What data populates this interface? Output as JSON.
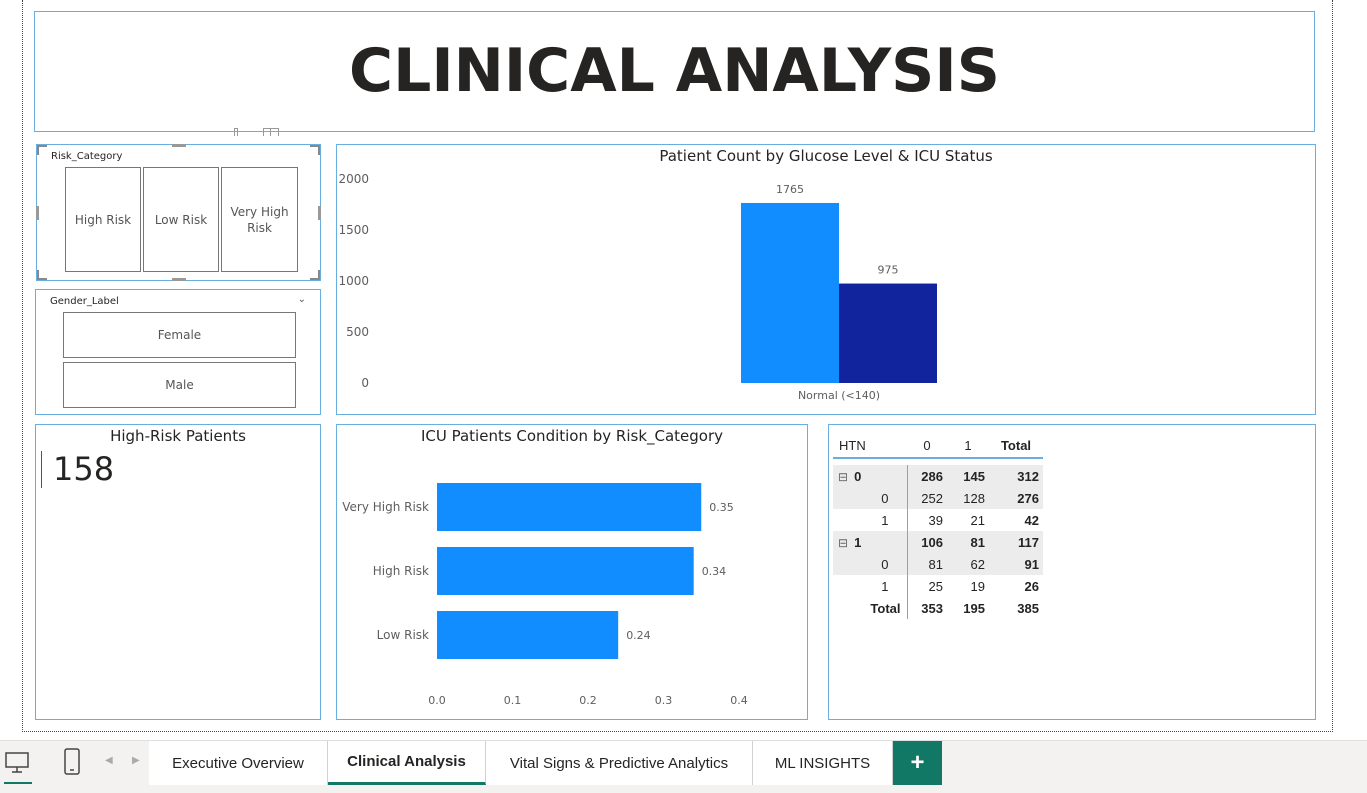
{
  "page": {
    "title": "CLINICAL ANALYSIS"
  },
  "slicer_risk": {
    "label": "Risk_Category",
    "items": [
      "High Risk",
      "Low Risk",
      "Very High Risk"
    ]
  },
  "slicer_gender": {
    "label": "Gender_Label",
    "items": [
      "Female",
      "Male"
    ]
  },
  "kpi": {
    "title": "High-Risk Patients",
    "value": "158"
  },
  "chart_data": [
    {
      "type": "bar",
      "title": "Patient Count by Glucose Level & ICU Status",
      "categories": [
        "Normal (<140)"
      ],
      "series": [
        {
          "values": [
            1765
          ],
          "color": "#118dff"
        },
        {
          "values": [
            975
          ],
          "color": "#12239e"
        }
      ],
      "ylim": [
        0,
        2000
      ],
      "yticks": [
        0,
        500,
        1000,
        1500,
        2000
      ],
      "data_labels": [
        "1765",
        "975"
      ],
      "grid": false
    },
    {
      "type": "bar",
      "orientation": "horizontal",
      "title": "ICU Patients Condition by Risk_Category",
      "categories": [
        "Very High Risk",
        "High Risk",
        "Low Risk"
      ],
      "values": [
        0.35,
        0.34,
        0.24
      ],
      "color": "#118dff",
      "xlim": [
        0,
        0.4
      ],
      "xticks": [
        "0.0",
        "0.1",
        "0.2",
        "0.3",
        "0.4"
      ],
      "grid": false
    }
  ],
  "matrix": {
    "headers": [
      "HTN",
      "0",
      "1",
      "Total"
    ],
    "rows": [
      {
        "label": "0",
        "level": 0,
        "expand": "⊟",
        "cells": [
          "286",
          "145",
          "312"
        ]
      },
      {
        "label": "0",
        "level": 1,
        "cells": [
          "252",
          "128",
          "276"
        ]
      },
      {
        "label": "1",
        "level": 1,
        "cells": [
          "39",
          "21",
          "42"
        ]
      },
      {
        "label": "1",
        "level": 0,
        "expand": "⊟",
        "cells": [
          "106",
          "81",
          "117"
        ]
      },
      {
        "label": "0",
        "level": 1,
        "cells": [
          "81",
          "62",
          "91"
        ]
      },
      {
        "label": "1",
        "level": 1,
        "cells": [
          "25",
          "19",
          "26"
        ]
      },
      {
        "label": "Total",
        "level": -1,
        "cells": [
          "353",
          "195",
          "385"
        ]
      }
    ]
  },
  "tabs": [
    "Executive Overview",
    "Clinical Analysis",
    "Vital Signs & Predictive Analytics",
    "ML INSIGHTS"
  ],
  "add_tab_label": "+",
  "colors": {
    "accent_green": "#117865",
    "bar_light": "#118dff",
    "bar_dark": "#12239e",
    "panel_border": "#6aaee0"
  }
}
